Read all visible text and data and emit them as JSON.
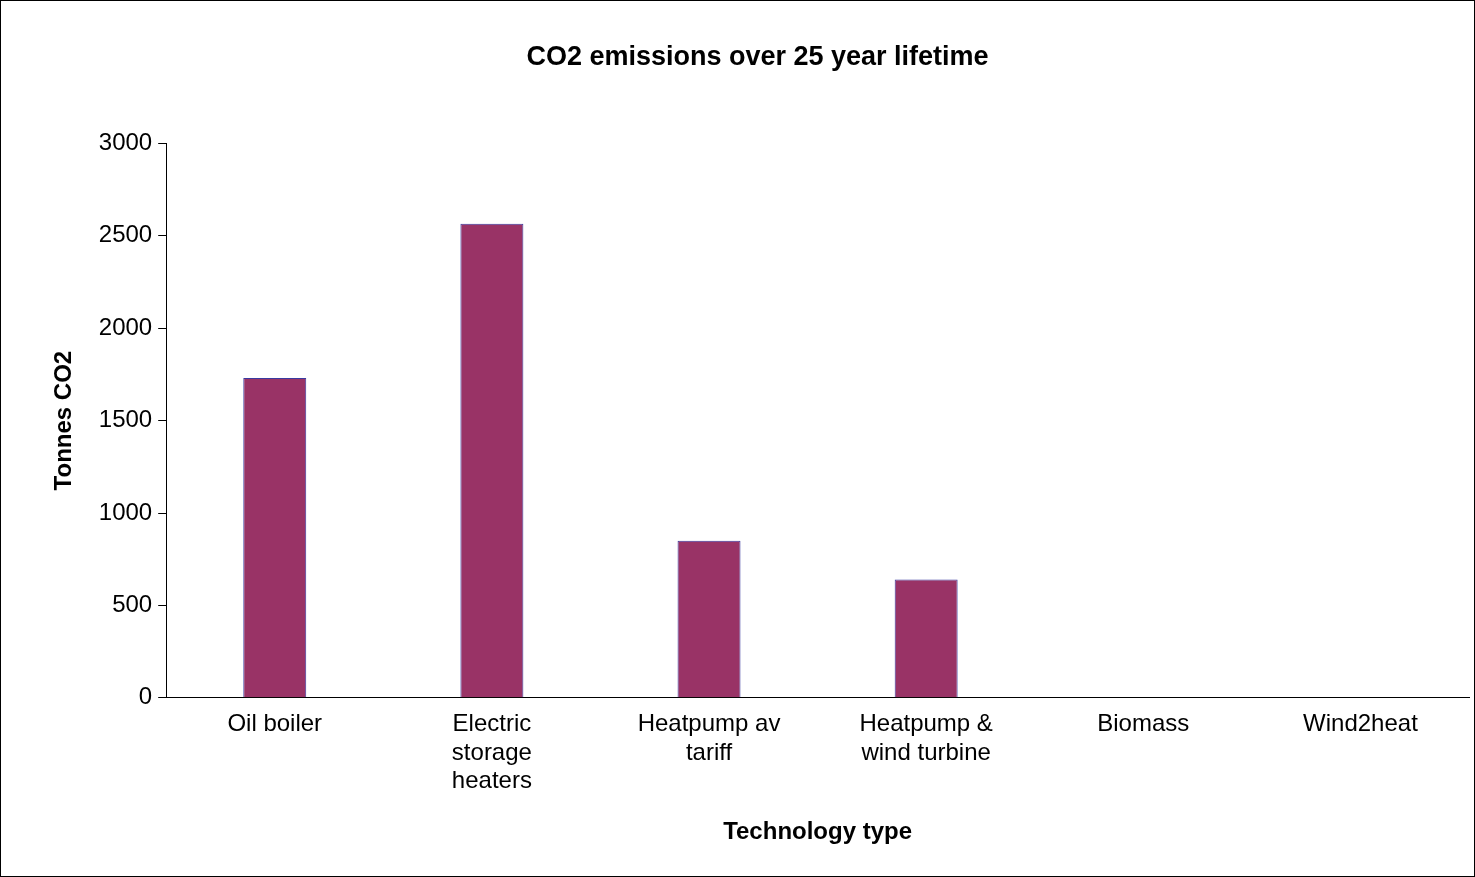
{
  "chart_data": {
    "type": "bar",
    "title": "CO2 emissions over 25 year lifetime",
    "xlabel": "Technology type",
    "ylabel": "Tonnes CO2",
    "categories": [
      "Oil boiler",
      "Electric storage heaters",
      "Heatpump av tariff",
      "Heatpump & wind turbine",
      "Biomass",
      "Wind2heat"
    ],
    "values": [
      1730,
      2565,
      850,
      640,
      0,
      0
    ],
    "color": "#993366",
    "ylim": [
      0,
      3000
    ],
    "yticks": [
      0,
      500,
      1000,
      1500,
      2000,
      2500,
      3000
    ],
    "grid": false,
    "legend": false
  }
}
